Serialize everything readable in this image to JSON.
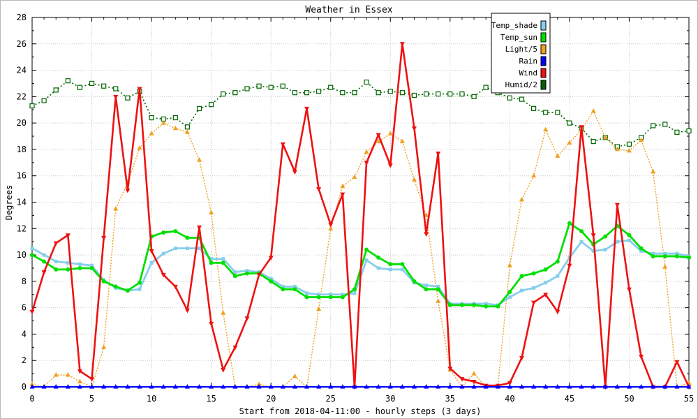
{
  "chart_data": {
    "type": "line",
    "title": "Weather in Essex",
    "xlabel": "Start from 2018-04-11:00 - hourly steps (3 days)",
    "ylabel": "Degrees",
    "xlim": [
      0,
      55
    ],
    "ylim": [
      0,
      28
    ],
    "x_ticks": [
      0,
      5,
      10,
      15,
      20,
      25,
      30,
      35,
      40,
      45,
      50,
      55
    ],
    "y_ticks": [
      0,
      2,
      4,
      6,
      8,
      10,
      12,
      14,
      16,
      18,
      20,
      22,
      24,
      26,
      28
    ],
    "grid": true,
    "legend_position": "top-right",
    "series": [
      {
        "name": "Temp_shade",
        "color": "#87ceeb",
        "values": [
          10.5,
          10.0,
          9.5,
          9.4,
          9.3,
          9.2,
          8.1,
          7.5,
          7.3,
          7.4,
          9.4,
          10.1,
          10.5,
          10.5,
          10.5,
          9.7,
          9.7,
          8.7,
          8.8,
          8.7,
          8.2,
          7.6,
          7.6,
          7.1,
          7.0,
          7.0,
          7.0,
          7.1,
          9.6,
          9.0,
          8.9,
          8.9,
          7.9,
          7.7,
          7.6,
          6.3,
          6.3,
          6.3,
          6.3,
          6.2,
          6.8,
          7.3,
          7.5,
          7.9,
          8.4,
          9.8,
          11.0,
          10.3,
          10.4,
          11.0,
          11.1,
          10.3,
          10.1,
          10.1,
          10.1,
          9.9
        ]
      },
      {
        "name": "Temp_sun",
        "color": "#00e000",
        "values": [
          10.0,
          9.5,
          8.9,
          8.9,
          9.0,
          9.0,
          8.0,
          7.6,
          7.3,
          7.9,
          11.4,
          11.7,
          11.8,
          11.3,
          11.3,
          9.4,
          9.4,
          8.4,
          8.6,
          8.6,
          8.0,
          7.4,
          7.4,
          6.8,
          6.8,
          6.8,
          6.8,
          7.4,
          10.4,
          9.8,
          9.3,
          9.3,
          8.0,
          7.4,
          7.4,
          6.2,
          6.2,
          6.2,
          6.1,
          6.1,
          7.2,
          8.4,
          8.6,
          8.9,
          9.5,
          12.4,
          11.8,
          10.8,
          11.4,
          12.2,
          11.5,
          10.5,
          9.9,
          9.9,
          9.9,
          9.8
        ]
      },
      {
        "name": "Light/5",
        "color": "#f0a020",
        "values": [
          0.2,
          0.0,
          0.9,
          0.9,
          0.4,
          0.0,
          3.0,
          13.5,
          15.5,
          18.1,
          19.2,
          20.0,
          19.6,
          19.3,
          17.2,
          13.2,
          5.6,
          0.0,
          0.0,
          0.2,
          0.0,
          0.0,
          0.8,
          0.0,
          5.9,
          12.0,
          15.2,
          15.9,
          17.8,
          18.6,
          19.2,
          18.6,
          15.7,
          13.0,
          6.5,
          1.3,
          0.0,
          1.0,
          0.0,
          0.0,
          9.2,
          14.2,
          16.0,
          19.5,
          17.5,
          18.5,
          19.5,
          20.9,
          18.9,
          18.0,
          17.9,
          18.7,
          16.3,
          9.1,
          0.0,
          0.3
        ]
      },
      {
        "name": "Rain",
        "color": "#0000ff",
        "values": [
          0,
          0,
          0,
          0,
          0,
          0,
          0,
          0,
          0,
          0,
          0,
          0,
          0,
          0,
          0,
          0,
          0,
          0,
          0,
          0,
          0,
          0,
          0,
          0,
          0,
          0,
          0,
          0,
          0,
          0,
          0,
          0,
          0,
          0,
          0,
          0,
          0,
          0,
          0,
          0,
          0,
          0,
          0,
          0,
          0,
          0,
          0,
          0,
          0,
          0,
          0,
          0,
          0,
          0,
          0,
          0
        ]
      },
      {
        "name": "Wind",
        "color": "#ee1111",
        "values": [
          5.7,
          8.7,
          10.9,
          11.5,
          1.2,
          0.6,
          11.3,
          22.0,
          14.9,
          22.6,
          10.3,
          8.5,
          7.6,
          5.8,
          12.1,
          4.8,
          1.3,
          3.0,
          5.2,
          8.5,
          9.8,
          18.4,
          16.3,
          21.1,
          15.0,
          12.3,
          14.6,
          0.0,
          17.0,
          19.1,
          16.8,
          26.0,
          19.6,
          11.6,
          17.7,
          1.4,
          0.6,
          0.4,
          0.1,
          0.1,
          0.3,
          2.2,
          6.4,
          7.0,
          5.7,
          9.2,
          19.7,
          11.5,
          0.0,
          13.8,
          7.4,
          2.3,
          0.0,
          0.0,
          1.9,
          0.0
        ]
      },
      {
        "name": "Humid/2",
        "color": "#006400",
        "values": [
          21.3,
          21.7,
          22.5,
          23.2,
          22.7,
          23.0,
          22.8,
          22.6,
          21.9,
          22.4,
          20.4,
          20.3,
          20.4,
          19.7,
          21.1,
          21.4,
          22.2,
          22.3,
          22.6,
          22.8,
          22.7,
          22.8,
          22.3,
          22.3,
          22.4,
          22.7,
          22.3,
          22.3,
          23.1,
          22.3,
          22.4,
          22.3,
          22.1,
          22.2,
          22.2,
          22.2,
          22.2,
          22.0,
          22.7,
          22.3,
          21.9,
          21.8,
          21.1,
          20.8,
          20.8,
          20.0,
          19.6,
          18.6,
          18.9,
          18.2,
          18.4,
          18.9,
          19.8,
          19.9,
          19.3,
          19.4
        ]
      }
    ]
  }
}
